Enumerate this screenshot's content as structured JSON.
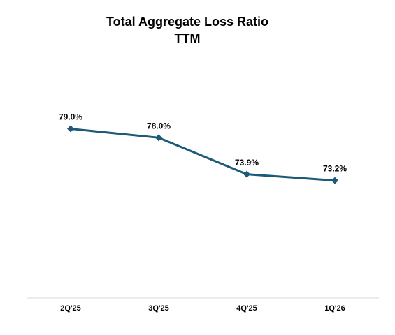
{
  "chart_data": {
    "type": "line",
    "title": "Total Aggregate Loss Ratio",
    "subtitle": "TTM",
    "categories": [
      "2Q'25",
      "3Q'25",
      "4Q'25",
      "1Q'26"
    ],
    "series": [
      {
        "name": "Total Aggregate Loss Ratio",
        "color": "#1d5a78",
        "values": [
          79.0,
          78.0,
          73.9,
          73.2
        ],
        "value_labels": [
          "79.0%",
          "78.0%",
          "73.9%",
          "73.2%"
        ]
      }
    ],
    "ylim": [
      60,
      85
    ],
    "grid": false
  }
}
